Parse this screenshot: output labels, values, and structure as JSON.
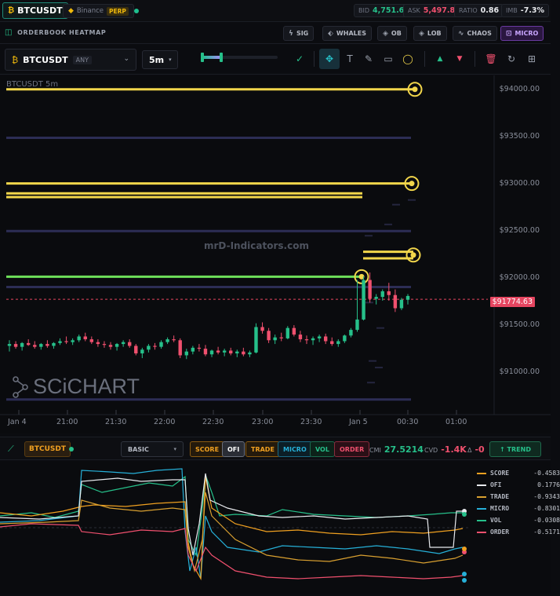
{
  "topbar": {
    "symbol": "BTCUSDT",
    "exchange": "Binance",
    "contract": "PERP",
    "bid_label": "BID",
    "bid": "4,751.6",
    "ask_label": "ASK",
    "ask": "5,497.8",
    "ratio_label": "RATIO",
    "ratio": "0.86",
    "imb_label": "IMB",
    "imb": "-7.3%"
  },
  "titlebar": {
    "title": "ORDERBOOK HEATMAP",
    "buttons": [
      {
        "label": "SIG",
        "icon": "lightning-icon"
      },
      {
        "label": "WHALES",
        "icon": "drop-icon"
      },
      {
        "label": "OB",
        "icon": "layers-icon"
      },
      {
        "label": "LOB",
        "icon": "layers-icon"
      },
      {
        "label": "CHAOS",
        "icon": "wave-icon"
      },
      {
        "label": "MICRO",
        "icon": "chart-icon",
        "active": true
      }
    ]
  },
  "toolbar": {
    "symbol": "BTCUSDT",
    "symbol_tag": "ANY",
    "timeframe": "5m",
    "tools": [
      "check-circle-icon",
      "move-icon",
      "text-icon",
      "pen-icon",
      "rectangle-icon",
      "circle-icon",
      "arrow-up-icon",
      "arrow-down-icon",
      "trash-icon",
      "refresh-icon",
      "screenshot-icon"
    ]
  },
  "main_chart": {
    "title": "BTCUSDT 5m",
    "watermark": "mrD-Indicators.com",
    "brand": "SCiCHART",
    "current_price": "$91774.63",
    "colors": {
      "up": "#26c08a",
      "down": "#f0506e",
      "level": "#f2d64b",
      "green_level": "#6ee05a",
      "faint_level": "#2c2d55"
    }
  },
  "chart_data": {
    "type": "candlestick",
    "title": "BTCUSDT 5m",
    "y_ticks": [
      "$94000.00",
      "$93500.00",
      "$93000.00",
      "$92500.00",
      "$92000.00",
      "$91500.00",
      "$91000.00"
    ],
    "y_tick_values": [
      94000,
      93500,
      93000,
      92500,
      92000,
      91500,
      91000
    ],
    "x_ticks": [
      "Jan 4",
      "21:00",
      "21:30",
      "22:00",
      "22:30",
      "23:00",
      "23:30",
      "Jan 5",
      "00:30",
      "01:00"
    ],
    "ylim": [
      90650,
      94120
    ],
    "current_price": 91774.63,
    "levels": [
      {
        "price": 94005,
        "kind": "major"
      },
      {
        "price": 93005,
        "kind": "major"
      },
      {
        "price": 92900,
        "kind": "minor"
      },
      {
        "price": 92860,
        "kind": "minor"
      },
      {
        "price": 92280,
        "kind": "minor"
      },
      {
        "price": 92210,
        "kind": "minor"
      },
      {
        "price": 92015,
        "kind": "green"
      }
    ],
    "faint_levels": [
      93490,
      92500,
      91905,
      90710
    ],
    "candles": [
      [
        91280,
        91340,
        91220,
        91300
      ],
      [
        91300,
        91330,
        91250,
        91270
      ],
      [
        91270,
        91320,
        91230,
        91310
      ],
      [
        91310,
        91350,
        91280,
        91290
      ],
      [
        91290,
        91330,
        91250,
        91270
      ],
      [
        91270,
        91310,
        91240,
        91300
      ],
      [
        91300,
        91340,
        91260,
        91280
      ],
      [
        91280,
        91320,
        91250,
        91310
      ],
      [
        91310,
        91360,
        91290,
        91330
      ],
      [
        91330,
        91380,
        91300,
        91320
      ],
      [
        91320,
        91360,
        91290,
        91340
      ],
      [
        91340,
        91400,
        91320,
        91380
      ],
      [
        91380,
        91420,
        91330,
        91350
      ],
      [
        91350,
        91380,
        91300,
        91320
      ],
      [
        91320,
        91350,
        91270,
        91300
      ],
      [
        91300,
        91330,
        91260,
        91290
      ],
      [
        91290,
        91320,
        91240,
        91270
      ],
      [
        91270,
        91310,
        91230,
        91300
      ],
      [
        91300,
        91340,
        91270,
        91320
      ],
      [
        91320,
        91350,
        91260,
        91280
      ],
      [
        91280,
        91300,
        91180,
        91200
      ],
      [
        91200,
        91260,
        91150,
        91240
      ],
      [
        91240,
        91300,
        91210,
        91280
      ],
      [
        91280,
        91310,
        91240,
        91270
      ],
      [
        91270,
        91340,
        91250,
        91320
      ],
      [
        91320,
        91370,
        91300,
        91350
      ],
      [
        91350,
        91390,
        91320,
        91340
      ],
      [
        91340,
        91360,
        91150,
        91180
      ],
      [
        91180,
        91250,
        91140,
        91220
      ],
      [
        91220,
        91280,
        91190,
        91260
      ],
      [
        91260,
        91300,
        91220,
        91250
      ],
      [
        91250,
        91290,
        91170,
        91190
      ],
      [
        91190,
        91240,
        91160,
        91230
      ],
      [
        91230,
        91270,
        91190,
        91210
      ],
      [
        91210,
        91250,
        91170,
        91230
      ],
      [
        91230,
        91260,
        91180,
        91200
      ],
      [
        91200,
        91240,
        91160,
        91220
      ],
      [
        91220,
        91260,
        91170,
        91190
      ],
      [
        91190,
        91230,
        91160,
        91210
      ],
      [
        91210,
        91520,
        91200,
        91480
      ],
      [
        91480,
        91530,
        91410,
        91440
      ],
      [
        91440,
        91470,
        91310,
        91340
      ],
      [
        91340,
        91400,
        91300,
        91370
      ],
      [
        91370,
        91420,
        91330,
        91360
      ],
      [
        91360,
        91490,
        91350,
        91470
      ],
      [
        91470,
        91500,
        91380,
        91400
      ],
      [
        91400,
        91440,
        91320,
        91350
      ],
      [
        91350,
        91390,
        91300,
        91340
      ],
      [
        91340,
        91380,
        91290,
        91360
      ],
      [
        91360,
        91400,
        91320,
        91380
      ],
      [
        91380,
        91410,
        91300,
        91330
      ],
      [
        91330,
        91370,
        91280,
        91300
      ],
      [
        91300,
        91350,
        91270,
        91330
      ],
      [
        91330,
        91400,
        91310,
        91390
      ],
      [
        91390,
        91470,
        91370,
        91450
      ],
      [
        91450,
        91980,
        91430,
        91560
      ],
      [
        91560,
        92020,
        91550,
        91980
      ],
      [
        91980,
        92060,
        91740,
        91780
      ],
      [
        91780,
        91830,
        91720,
        91800
      ],
      [
        91800,
        91880,
        91760,
        91860
      ],
      [
        91860,
        91950,
        91760,
        91820
      ],
      [
        91820,
        91880,
        91640,
        91680
      ],
      [
        91680,
        91790,
        91660,
        91770
      ],
      [
        91770,
        91830,
        91720,
        91810
      ]
    ]
  },
  "lower_toolbar": {
    "symbol": "BTCUSDT",
    "mode": "BASIC",
    "pills": [
      {
        "label": "SCORE",
        "color": "#f0a020"
      },
      {
        "label": "OFI",
        "color": "#e8eaee",
        "active": true
      },
      {
        "label": "TRADE",
        "color": "#f0a020"
      },
      {
        "label": "MICRO",
        "color": "#26b0d8"
      },
      {
        "label": "VOL",
        "color": "#26c08a"
      },
      {
        "label": "ORDER",
        "color": "#f0506e"
      }
    ],
    "cmi_label": "CMI",
    "cmi": "27.5214",
    "cvd_label": "CVD",
    "cvd": "-1.4K",
    "delta_label": "Δ",
    "delta": "-0",
    "trend": "↑ TREND"
  },
  "lower_panel": {
    "legend": [
      {
        "name": "SCORE",
        "value": "-0.4583",
        "color": "#f0a020"
      },
      {
        "name": "OFI",
        "value": "0.1776",
        "color": "#e8eaee"
      },
      {
        "name": "TRADE",
        "value": "-0.9343",
        "color": "#d9a030"
      },
      {
        "name": "MICRO",
        "value": "-0.8301",
        "color": "#26b0d8"
      },
      {
        "name": "VOL",
        "value": "-0.0308",
        "color": "#26c08a"
      },
      {
        "name": "ORDER",
        "value": "-0.5171",
        "color": "#f0506e"
      }
    ]
  }
}
